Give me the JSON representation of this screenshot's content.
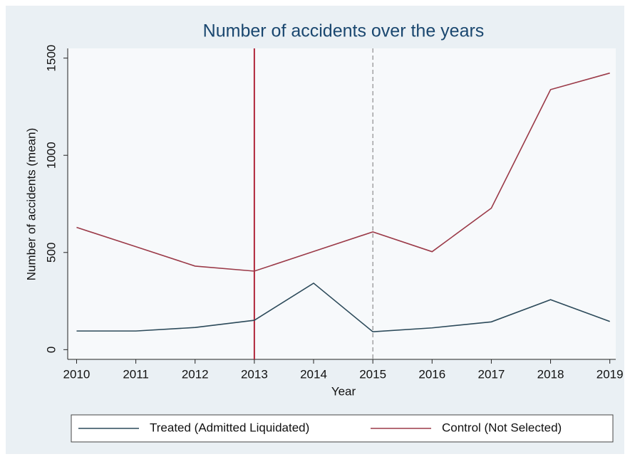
{
  "chart_data": {
    "type": "line",
    "title": "Number of accidents over the years",
    "x_label": "Year",
    "y_label": "Number of accidents (mean)",
    "x": [
      2010,
      2011,
      2012,
      2013,
      2014,
      2015,
      2016,
      2017,
      2018,
      2019
    ],
    "series": [
      {
        "name": "Treated (Admitted Liquidated)",
        "color": "#2c4a5a",
        "values": [
          96,
          96,
          114,
          151,
          342,
          92,
          112,
          143,
          257,
          145
        ]
      },
      {
        "name": "Control (Not Selected)",
        "color": "#9b3a48",
        "values": [
          629,
          530,
          430,
          404,
          505,
          606,
          504,
          728,
          1338,
          1423
        ]
      }
    ],
    "reference_lines": [
      {
        "x": 2013,
        "style": "solid",
        "color": "#b0263a"
      },
      {
        "x": 2015,
        "style": "dashed",
        "color": "#777777"
      }
    ],
    "xlim": [
      2009.85,
      2019.1
    ],
    "xticks": [
      2010,
      2011,
      2012,
      2013,
      2014,
      2015,
      2016,
      2017,
      2018,
      2019
    ],
    "ylim": [
      -50,
      1550
    ],
    "yticks": [
      0,
      500,
      1000,
      1500
    ],
    "grid": false
  }
}
